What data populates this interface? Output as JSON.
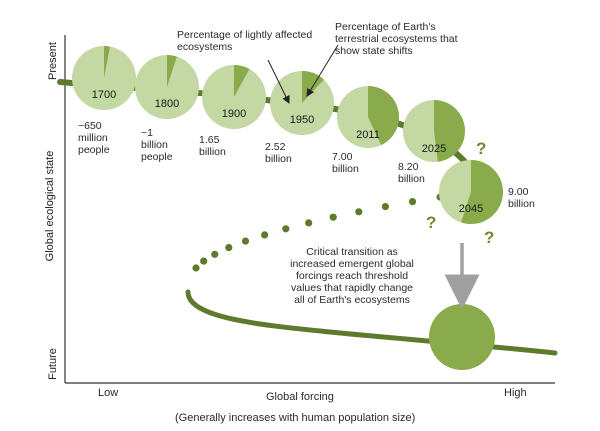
{
  "axes": {
    "y_top": "Present",
    "y_mid": "Global ecological state",
    "y_bottom": "Future",
    "x_low": "Low",
    "x_mid": "Global forcing",
    "x_high": "High",
    "x_caption": "(Generally increases with human population size)"
  },
  "annotations": {
    "lightly_affected": [
      "Percentage of lightly affected",
      "ecosystems"
    ],
    "state_shifts": [
      "Percentage of Earth's",
      "terrestrial ecosystems that",
      "show state shifts"
    ],
    "transition": [
      "Critical transition as",
      "increased emergent global",
      "forcings reach threshold",
      "values that rapidly change",
      "all of Earth's ecosystems"
    ]
  },
  "stages": [
    {
      "year": "1700",
      "population": [
        "~650",
        "million",
        "people"
      ],
      "shifted_fraction": 0.03
    },
    {
      "year": "1800",
      "population": [
        "~1",
        "billion",
        "people"
      ],
      "shifted_fraction": 0.05
    },
    {
      "year": "1900",
      "population": [
        "1.65",
        "billion"
      ],
      "shifted_fraction": 0.08
    },
    {
      "year": "1950",
      "population": [
        "2.52",
        "billion"
      ],
      "shifted_fraction": 0.12
    },
    {
      "year": "2011",
      "population": [
        "7.00",
        "billion"
      ],
      "shifted_fraction": 0.43
    },
    {
      "year": "2025",
      "population": [
        "8.20",
        "billion"
      ],
      "shifted_fraction": 0.48
    },
    {
      "year": "2045",
      "population": [
        "9.00",
        "billion"
      ],
      "shifted_fraction": 0.55
    }
  ],
  "question_mark": "?",
  "colors": {
    "light": "#c3d8a2",
    "dark": "#8aab4c",
    "path": "#5e7a2c",
    "arrow": "#a0a0a0"
  }
}
